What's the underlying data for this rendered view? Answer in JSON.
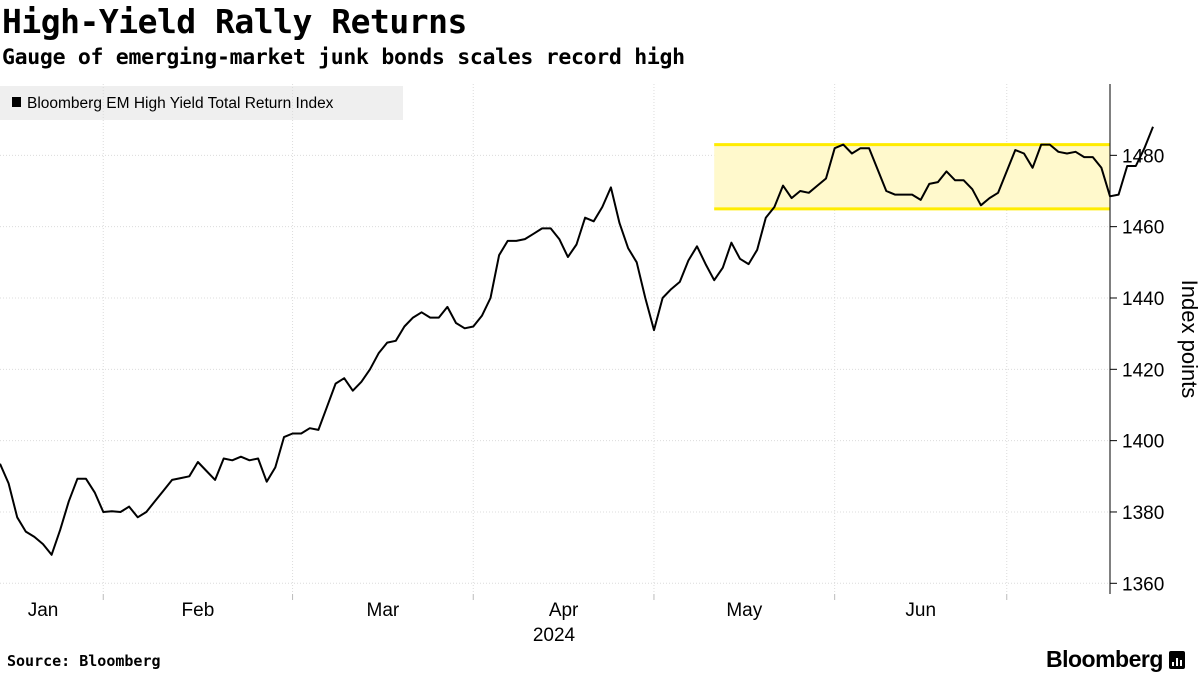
{
  "header": {
    "title": "High-Yield Rally Returns",
    "subtitle": "Gauge of emerging-market junk bonds scales record high"
  },
  "footer": {
    "source": "Source: Bloomberg",
    "brand": "Bloomberg",
    "brand_icon": "bloomberg-bars-icon"
  },
  "colors": {
    "line": "#000000",
    "grid": "#dcdcdc",
    "highlight_fill": "#fff9cc",
    "highlight_border": "#ffec00",
    "legend_bg": "#efefef"
  },
  "chart_data": {
    "type": "line",
    "title": "High-Yield Rally Returns",
    "subtitle": "Gauge of emerging-market junk bonds scales record high",
    "xlabel": "2024",
    "ylabel": "Index points",
    "ylim": [
      1357,
      1500
    ],
    "yticks": [
      1360,
      1380,
      1400,
      1420,
      1440,
      1460,
      1480
    ],
    "x_tick_labels": [
      "Jan",
      "Feb",
      "Mar",
      "Apr",
      "May",
      "Jun"
    ],
    "x_range": [
      0,
      129
    ],
    "month_boundaries": [
      12,
      34,
      55,
      76,
      97,
      117
    ],
    "month_centers": [
      5,
      23,
      44.5,
      65.5,
      86.5,
      107
    ],
    "legend": [
      "Bloomberg EM High Yield Total Return Index"
    ],
    "grid": true,
    "highlight_band": {
      "x_start": 83,
      "x_end": 129,
      "y_low": 1465,
      "y_high": 1483
    },
    "series": [
      {
        "name": "Bloomberg EM High Yield Total Return Index",
        "values": [
          1393.5,
          1388,
          1378.5,
          1374.5,
          1373,
          1371,
          1368,
          1375,
          1383,
          1389.3,
          1389.3,
          1385.5,
          1380,
          1380.2,
          1380,
          1381.5,
          1378.5,
          1380,
          1383,
          1386,
          1389,
          1389.5,
          1390,
          1394,
          1391.5,
          1389,
          1395,
          1394.5,
          1395.5,
          1394.5,
          1395,
          1388.5,
          1392.5,
          1401,
          1402,
          1402,
          1403.5,
          1403,
          1409.5,
          1416,
          1417.5,
          1414,
          1416.5,
          1420,
          1424.5,
          1427.5,
          1428,
          1432,
          1434.5,
          1436,
          1434.5,
          1434.5,
          1437.5,
          1433,
          1431.5,
          1432,
          1435,
          1440,
          1452,
          1456,
          1456,
          1456.5,
          1458,
          1459.5,
          1459.5,
          1456.5,
          1451.5,
          1455,
          1462.5,
          1461.5,
          1465.5,
          1471,
          1461,
          1454,
          1450,
          1440,
          1431,
          1440,
          1442.5,
          1444.5,
          1450.5,
          1454.5,
          1449.5,
          1445,
          1448.5,
          1455.5,
          1451,
          1449.5,
          1453.5,
          1462.5,
          1465.5,
          1471.5,
          1468,
          1470,
          1469.5,
          1471.5,
          1473.5,
          1482,
          1483,
          1480.5,
          1482,
          1482,
          1476,
          1470,
          1469,
          1469,
          1469,
          1467.5,
          1472,
          1472.5,
          1475.5,
          1473,
          1473,
          1470.5,
          1466,
          1468,
          1469.5,
          1475.5,
          1481.5,
          1480.5,
          1476.5,
          1483,
          1483,
          1481,
          1480.5,
          1481,
          1479.5,
          1479.5,
          1476.5,
          1468.5,
          1469,
          1477,
          1477,
          1482,
          1488
        ]
      }
    ]
  }
}
